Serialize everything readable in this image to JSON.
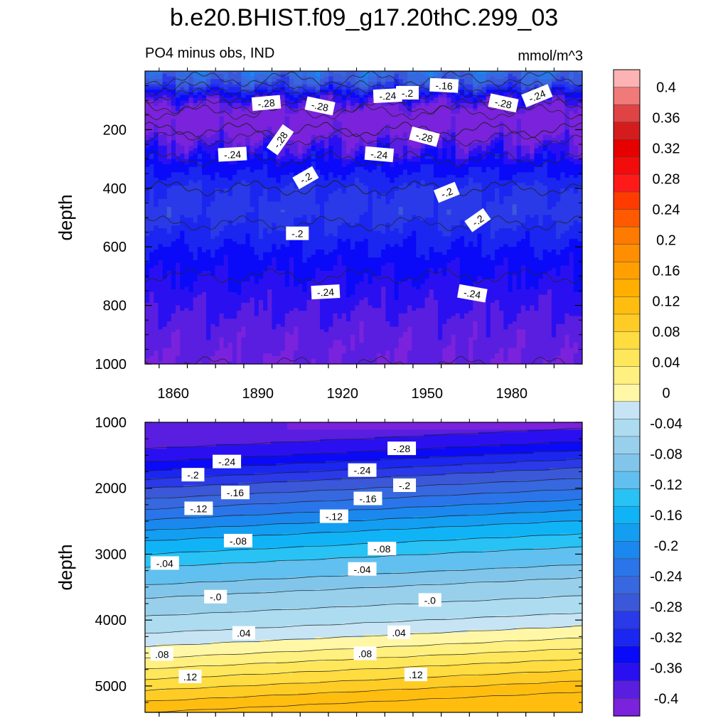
{
  "title": "b.e20.BHIST.f09_g17.20thC.299_03",
  "subtitle_left": "PO4 minus obs, IND",
  "subtitle_right": "mmol/m^3",
  "chart_data": [
    {
      "type": "heatmap",
      "panel": "upper",
      "ylabel": "depth",
      "xlim": [
        1850,
        2005
      ],
      "ylim": [
        1000,
        0
      ],
      "x_ticks": [
        1860,
        1890,
        1920,
        1950,
        1980
      ],
      "y_ticks": [
        200,
        400,
        600,
        800,
        1000
      ],
      "depth_profile": [
        {
          "depth": 0,
          "value": -0.14
        },
        {
          "depth": 40,
          "value": -0.17
        },
        {
          "depth": 90,
          "value": -0.25
        },
        {
          "depth": 150,
          "value": -0.31
        },
        {
          "depth": 200,
          "value": -0.3
        },
        {
          "depth": 260,
          "value": -0.26
        },
        {
          "depth": 320,
          "value": -0.23
        },
        {
          "depth": 400,
          "value": -0.2
        },
        {
          "depth": 480,
          "value": -0.19
        },
        {
          "depth": 560,
          "value": -0.21
        },
        {
          "depth": 640,
          "value": -0.23
        },
        {
          "depth": 760,
          "value": -0.25
        },
        {
          "depth": 880,
          "value": -0.27
        },
        {
          "depth": 1000,
          "value": -0.28
        }
      ],
      "contour_labels": [
        {
          "text": "-.28",
          "x": 1893,
          "depth": 110,
          "angle": -5
        },
        {
          "text": "-.28",
          "x": 1912,
          "depth": 120,
          "angle": 12
        },
        {
          "text": "-.24",
          "x": 1936,
          "depth": 85,
          "angle": -3
        },
        {
          "text": "-.2",
          "x": 1943,
          "depth": 75,
          "angle": 0
        },
        {
          "text": "-.16",
          "x": 1956,
          "depth": 50,
          "angle": 3
        },
        {
          "text": "-.28",
          "x": 1977,
          "depth": 110,
          "angle": 12
        },
        {
          "text": "-.24",
          "x": 1989,
          "depth": 85,
          "angle": -22
        },
        {
          "text": "-.28",
          "x": 1898,
          "depth": 235,
          "angle": -55
        },
        {
          "text": "-.28",
          "x": 1949,
          "depth": 225,
          "angle": 15
        },
        {
          "text": "-.24",
          "x": 1881,
          "depth": 285,
          "angle": -3
        },
        {
          "text": "-.24",
          "x": 1933,
          "depth": 285,
          "angle": 5
        },
        {
          "text": "-.2",
          "x": 1907,
          "depth": 365,
          "angle": -30
        },
        {
          "text": "-.2",
          "x": 1957,
          "depth": 415,
          "angle": -22
        },
        {
          "text": "-.2",
          "x": 1904,
          "depth": 555,
          "angle": 0
        },
        {
          "text": "-.2",
          "x": 1968,
          "depth": 510,
          "angle": -35
        },
        {
          "text": "-.24",
          "x": 1914,
          "depth": 755,
          "angle": -3
        },
        {
          "text": "-.24",
          "x": 1966,
          "depth": 760,
          "angle": 10
        }
      ]
    },
    {
      "type": "heatmap",
      "panel": "lower",
      "ylabel": "depth",
      "xlim": [
        1850,
        2005
      ],
      "ylim": [
        1000,
        5400
      ],
      "y_ticks": [
        1000,
        2000,
        3000,
        4000,
        5000
      ],
      "depth_profile_left": [
        {
          "depth": 1000,
          "value": -0.28
        },
        {
          "depth": 1300,
          "value": -0.27
        },
        {
          "depth": 1600,
          "value": -0.24
        },
        {
          "depth": 2000,
          "value": -0.18
        },
        {
          "depth": 2400,
          "value": -0.13
        },
        {
          "depth": 2800,
          "value": -0.08
        },
        {
          "depth": 3200,
          "value": -0.04
        },
        {
          "depth": 3600,
          "value": -0.01
        },
        {
          "depth": 3700,
          "value": 0.005
        },
        {
          "depth": 4100,
          "value": 0.03
        },
        {
          "depth": 4500,
          "value": 0.07
        },
        {
          "depth": 4900,
          "value": 0.12
        },
        {
          "depth": 5400,
          "value": 0.18
        }
      ],
      "slope_depth_per_century": 200,
      "contour_labels": [
        {
          "text": "-.28",
          "x": 1941,
          "depth": 1400
        },
        {
          "text": "-.24",
          "x": 1879,
          "depth": 1600
        },
        {
          "text": "-.24",
          "x": 1927,
          "depth": 1730
        },
        {
          "text": "-.2",
          "x": 1867,
          "depth": 1800
        },
        {
          "text": "-.2",
          "x": 1942,
          "depth": 1960
        },
        {
          "text": "-.16",
          "x": 1882,
          "depth": 2070
        },
        {
          "text": "-.16",
          "x": 1929,
          "depth": 2160
        },
        {
          "text": "-.12",
          "x": 1869,
          "depth": 2310
        },
        {
          "text": "-.12",
          "x": 1917,
          "depth": 2430
        },
        {
          "text": "-.08",
          "x": 1883,
          "depth": 2800
        },
        {
          "text": "-.08",
          "x": 1934,
          "depth": 2920
        },
        {
          "text": "-.04",
          "x": 1857,
          "depth": 3140
        },
        {
          "text": "-.04",
          "x": 1927,
          "depth": 3230
        },
        {
          "text": "-.0",
          "x": 1875,
          "depth": 3650
        },
        {
          "text": "-.0",
          "x": 1951,
          "depth": 3700
        },
        {
          "text": ".04",
          "x": 1885,
          "depth": 4200
        },
        {
          "text": ".04",
          "x": 1940,
          "depth": 4190
        },
        {
          "text": ".08",
          "x": 1856,
          "depth": 4520
        },
        {
          "text": ".08",
          "x": 1928,
          "depth": 4510
        },
        {
          "text": ".12",
          "x": 1866,
          "depth": 4860
        },
        {
          "text": ".12",
          "x": 1946,
          "depth": 4830
        }
      ]
    }
  ],
  "colorbar": {
    "labels": [
      "0.4",
      "0.36",
      "0.32",
      "0.28",
      "0.24",
      "0.2",
      "0.16",
      "0.12",
      "0.08",
      "0.04",
      "0",
      "-0.04",
      "-0.08",
      "-0.12",
      "-0.16",
      "-0.2",
      "-0.24",
      "-0.28",
      "-0.32",
      "-0.36",
      "-0.4"
    ],
    "colors": [
      "#fdb3b3",
      "#f07a7a",
      "#e04343",
      "#d51c1c",
      "#e60000",
      "#f20c0c",
      "#ff1a1a",
      "#ff3c00",
      "#ff5a00",
      "#ff7a00",
      "#ff8f00",
      "#ffa000",
      "#ffaf00",
      "#ffbd10",
      "#ffcc26",
      "#ffdc40",
      "#ffe75c",
      "#fff080",
      "#fff7a6",
      "#c6e4f4",
      "#addcf0",
      "#98d0ec",
      "#81c6ea",
      "#61c0ef",
      "#28c2f5",
      "#10b4f6",
      "#139ef2",
      "#1b88ee",
      "#2a75ea",
      "#3768e0",
      "#3a58d8",
      "#2a3ae8",
      "#1b26f0",
      "#0a0af8",
      "#2a10f0",
      "#5a1ee0",
      "#7a22dc"
    ]
  }
}
